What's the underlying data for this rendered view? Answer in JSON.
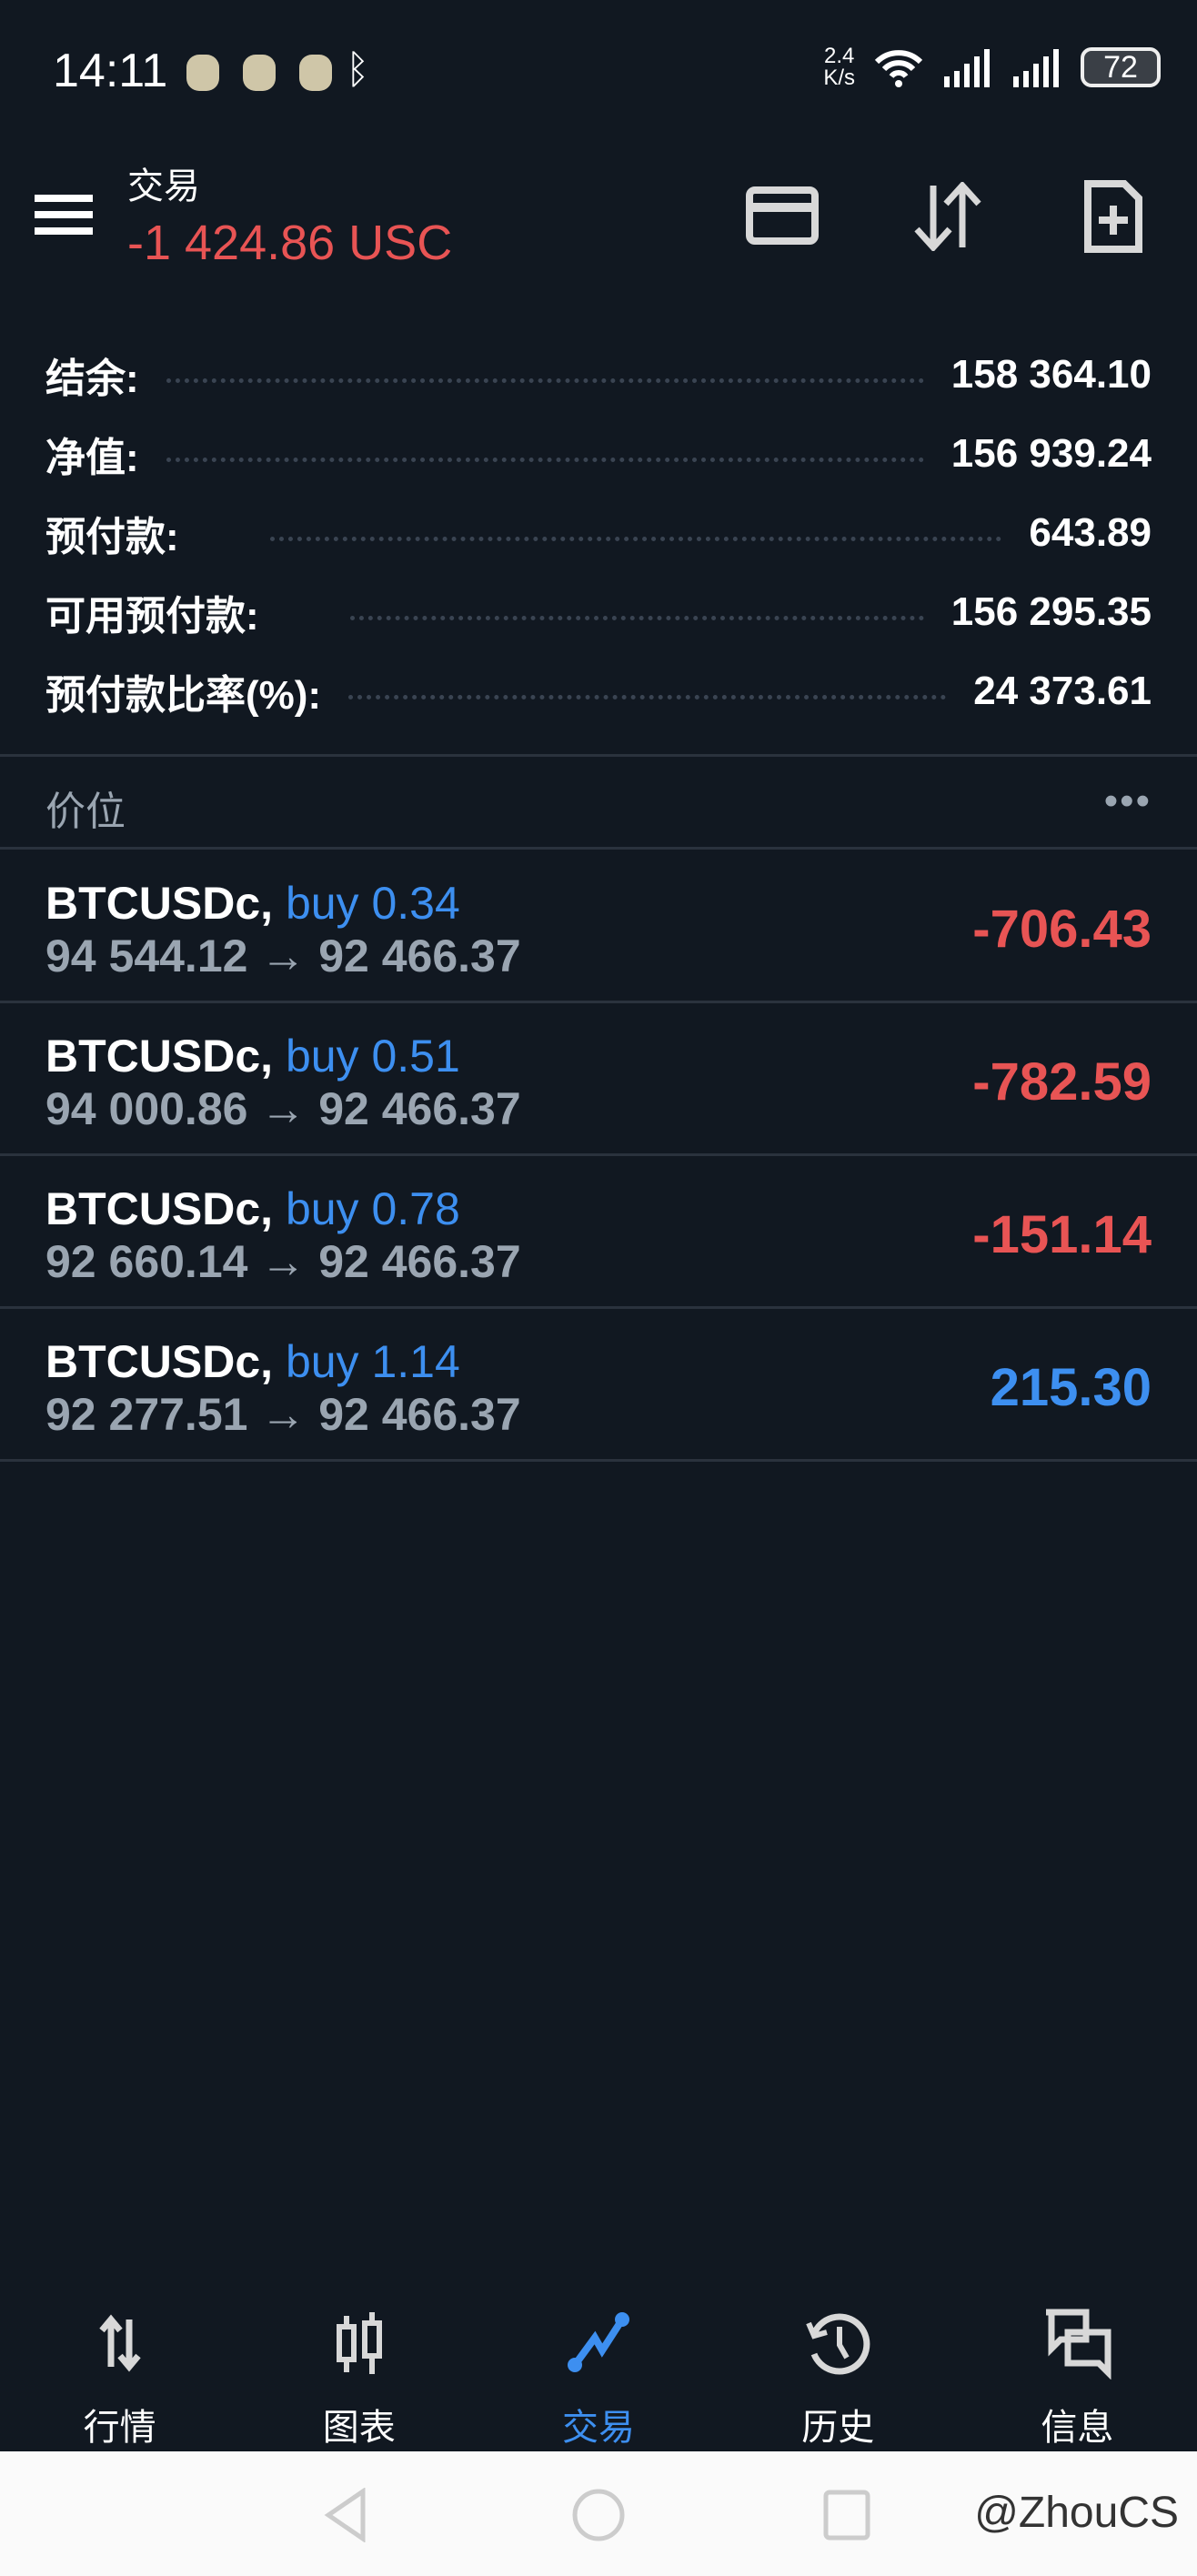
{
  "status_bar": {
    "time": "14:11",
    "net_speed": "2.4",
    "net_unit": "K/s",
    "battery": "72"
  },
  "header": {
    "title": "交易",
    "profit": "-1 424.86 USC"
  },
  "account": [
    {
      "label": "结余:",
      "value": "158 364.10"
    },
    {
      "label": "净值:",
      "value": "156 939.24"
    },
    {
      "label": "预付款:",
      "value": "643.89"
    },
    {
      "label": "可用预付款:",
      "value": "156 295.35"
    },
    {
      "label": "预付款比率(%):",
      "value": "24 373.61"
    }
  ],
  "positions_header": {
    "label": "价位",
    "more": "•••"
  },
  "positions": [
    {
      "symbol": "BTCUSDc,",
      "side": "buy 0.34",
      "prices": "94 544.12 → 92 466.37",
      "profit": "-706.43",
      "color": "#e85454"
    },
    {
      "symbol": "BTCUSDc,",
      "side": "buy 0.51",
      "prices": "94 000.86 → 92 466.37",
      "profit": "-782.59",
      "color": "#e85454"
    },
    {
      "symbol": "BTCUSDc,",
      "side": "buy 0.78",
      "prices": "92 660.14 → 92 466.37",
      "profit": "-151.14",
      "color": "#e85454"
    },
    {
      "symbol": "BTCUSDc,",
      "side": "buy 1.14",
      "prices": "92 277.51 → 92 466.37",
      "profit": "215.30",
      "color": "#3d8ff0"
    }
  ],
  "nav": [
    {
      "label": "行情",
      "icon": "arrows-up-down-icon"
    },
    {
      "label": "图表",
      "icon": "candlestick-icon"
    },
    {
      "label": "交易",
      "icon": "trade-line-icon",
      "active": true
    },
    {
      "label": "历史",
      "icon": "history-icon"
    },
    {
      "label": "信息",
      "icon": "chat-icon"
    }
  ],
  "watermark": "@ZhouCS"
}
